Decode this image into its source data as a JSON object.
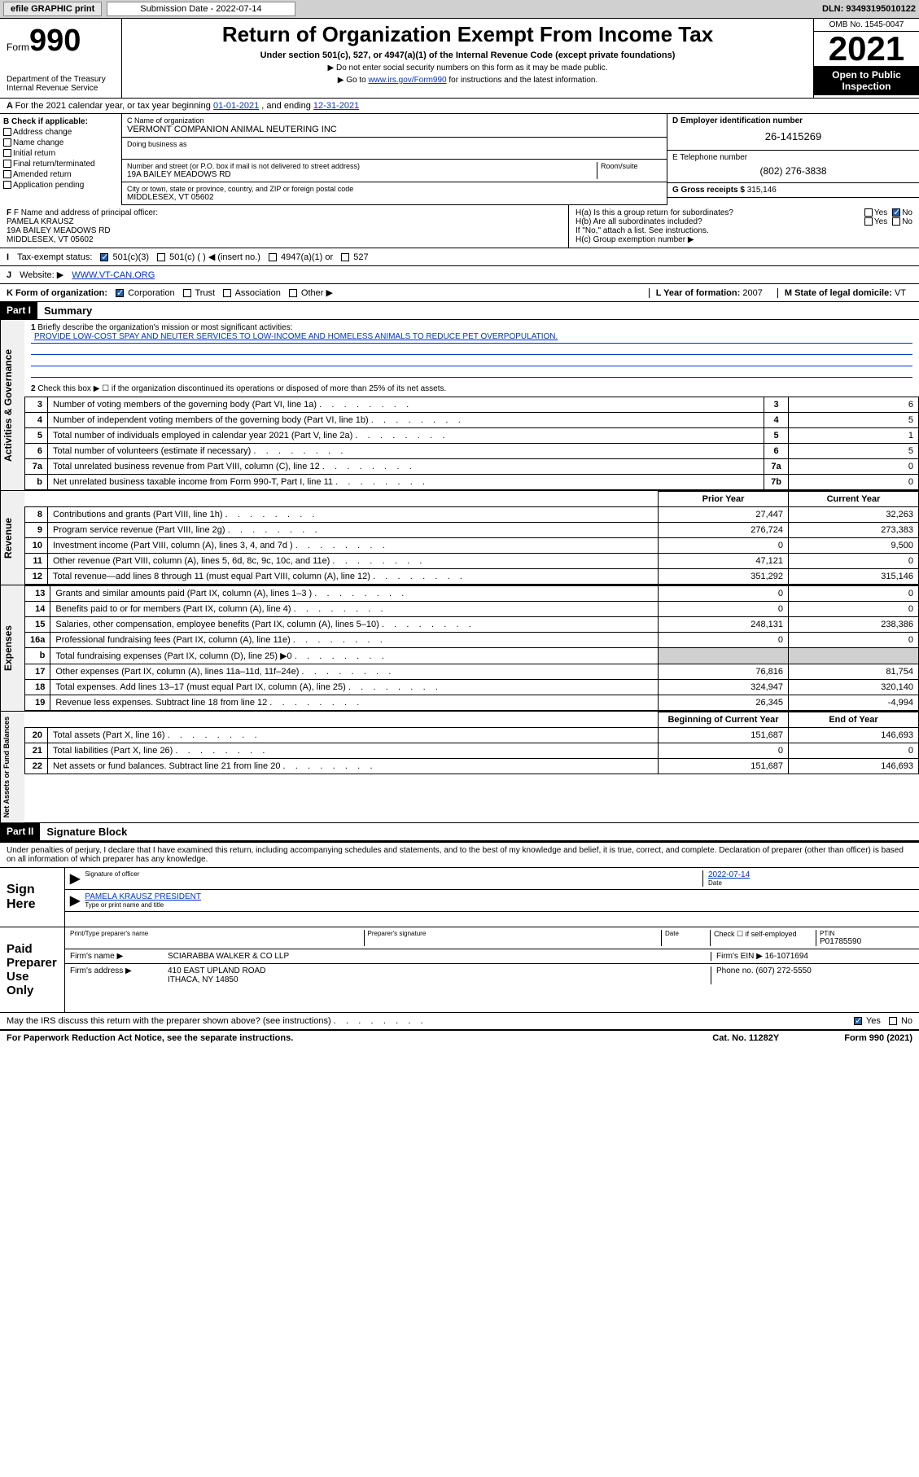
{
  "topbar": {
    "efile": "efile GRAPHIC print",
    "sub_date_lbl": "Submission Date - 2022-07-14",
    "dln": "DLN: 93493195010122"
  },
  "header": {
    "form_word": "Form",
    "form_num": "990",
    "title": "Return of Organization Exempt From Income Tax",
    "sub1": "Under section 501(c), 527, or 4947(a)(1) of the Internal Revenue Code (except private foundations)",
    "sub2": "▶ Do not enter social security numbers on this form as it may be made public.",
    "sub3_pre": "▶ Go to ",
    "sub3_link": "www.irs.gov/Form990",
    "sub3_post": " for instructions and the latest information.",
    "dept": "Department of the Treasury",
    "irs": "Internal Revenue Service",
    "omb": "OMB No. 1545-0047",
    "year": "2021",
    "open_pub1": "Open to Public",
    "open_pub2": "Inspection"
  },
  "line_a": {
    "text_pre": "For the 2021 calendar year, or tax year beginning ",
    "d1": "01-01-2021",
    "mid": " , and ending ",
    "d2": "12-31-2021"
  },
  "box_b": {
    "title": "B Check if applicable:",
    "opts": [
      "Address change",
      "Name change",
      "Initial return",
      "Final return/terminated",
      "Amended return",
      "Application pending"
    ]
  },
  "box_c": {
    "name_lbl": "C Name of organization",
    "name": "VERMONT COMPANION ANIMAL NEUTERING INC",
    "dba_lbl": "Doing business as",
    "addr_lbl": "Number and street (or P.O. box if mail is not delivered to street address)",
    "room_lbl": "Room/suite",
    "addr": "19A BAILEY MEADOWS RD",
    "city_lbl": "City or town, state or province, country, and ZIP or foreign postal code",
    "city": "MIDDLESEX, VT  05602"
  },
  "box_d": {
    "lbl": "D Employer identification number",
    "val": "26-1415269"
  },
  "box_e": {
    "lbl": "E Telephone number",
    "val": "(802) 276-3838"
  },
  "box_g": {
    "lbl": "G Gross receipts $",
    "val": "315,146"
  },
  "box_f": {
    "lbl": "F Name and address of principal officer:",
    "name": "PAMELA KRAUSZ",
    "addr1": "19A BAILEY MEADOWS RD",
    "addr2": "MIDDLESEX, VT  05602"
  },
  "box_h": {
    "ha": "H(a)  Is this a group return for subordinates?",
    "hb": "H(b)  Are all subordinates included?",
    "hb_note": "If \"No,\" attach a list. See instructions.",
    "hc": "H(c)  Group exemption number ▶",
    "yes": "Yes",
    "no": "No"
  },
  "row_i": {
    "lbl": "Tax-exempt status:",
    "o1": "501(c)(3)",
    "o2": "501(c) (   ) ◀ (insert no.)",
    "o3": "4947(a)(1) or",
    "o4": "527"
  },
  "row_j": {
    "lbl": "Website: ▶",
    "val": "WWW.VT-CAN.ORG"
  },
  "row_k": {
    "lbl": "K Form of organization:",
    "o1": "Corporation",
    "o2": "Trust",
    "o3": "Association",
    "o4": "Other ▶",
    "l_lbl": "L Year of formation:",
    "l_val": "2007",
    "m_lbl": "M State of legal domicile:",
    "m_val": "VT"
  },
  "part1": {
    "hdr": "Part I",
    "title": "Summary"
  },
  "summary": {
    "l1_lbl": "Briefly describe the organization's mission or most significant activities:",
    "l1_val": "PROVIDE LOW-COST SPAY AND NEUTER SERVICES TO LOW-INCOME AND HOMELESS ANIMALS TO REDUCE PET OVERPOPULATION.",
    "l2": "Check this box ▶ ☐  if the organization discontinued its operations or disposed of more than 25% of its net assets.",
    "rows": [
      {
        "n": "3",
        "t": "Number of voting members of the governing body (Part VI, line 1a)",
        "b": "3",
        "v": "6"
      },
      {
        "n": "4",
        "t": "Number of independent voting members of the governing body (Part VI, line 1b)",
        "b": "4",
        "v": "5"
      },
      {
        "n": "5",
        "t": "Total number of individuals employed in calendar year 2021 (Part V, line 2a)",
        "b": "5",
        "v": "1"
      },
      {
        "n": "6",
        "t": "Total number of volunteers (estimate if necessary)",
        "b": "6",
        "v": "5"
      },
      {
        "n": "7a",
        "t": "Total unrelated business revenue from Part VIII, column (C), line 12",
        "b": "7a",
        "v": "0"
      },
      {
        "n": "b",
        "t": "Net unrelated business taxable income from Form 990-T, Part I, line 11",
        "b": "7b",
        "v": "0"
      }
    ],
    "col_hdr_prior": "Prior Year",
    "col_hdr_curr": "Current Year",
    "rev": [
      {
        "n": "8",
        "t": "Contributions and grants (Part VIII, line 1h)",
        "p": "27,447",
        "c": "32,263"
      },
      {
        "n": "9",
        "t": "Program service revenue (Part VIII, line 2g)",
        "p": "276,724",
        "c": "273,383"
      },
      {
        "n": "10",
        "t": "Investment income (Part VIII, column (A), lines 3, 4, and 7d )",
        "p": "0",
        "c": "9,500"
      },
      {
        "n": "11",
        "t": "Other revenue (Part VIII, column (A), lines 5, 6d, 8c, 9c, 10c, and 11e)",
        "p": "47,121",
        "c": "0"
      },
      {
        "n": "12",
        "t": "Total revenue—add lines 8 through 11 (must equal Part VIII, column (A), line 12)",
        "p": "351,292",
        "c": "315,146"
      }
    ],
    "exp": [
      {
        "n": "13",
        "t": "Grants and similar amounts paid (Part IX, column (A), lines 1–3 )",
        "p": "0",
        "c": "0"
      },
      {
        "n": "14",
        "t": "Benefits paid to or for members (Part IX, column (A), line 4)",
        "p": "0",
        "c": "0"
      },
      {
        "n": "15",
        "t": "Salaries, other compensation, employee benefits (Part IX, column (A), lines 5–10)",
        "p": "248,131",
        "c": "238,386"
      },
      {
        "n": "16a",
        "t": "Professional fundraising fees (Part IX, column (A), line 11e)",
        "p": "0",
        "c": "0"
      },
      {
        "n": "b",
        "t": "Total fundraising expenses (Part IX, column (D), line 25) ▶0",
        "p": "",
        "c": "",
        "shade": true
      },
      {
        "n": "17",
        "t": "Other expenses (Part IX, column (A), lines 11a–11d, 11f–24e)",
        "p": "76,816",
        "c": "81,754"
      },
      {
        "n": "18",
        "t": "Total expenses. Add lines 13–17 (must equal Part IX, column (A), line 25)",
        "p": "324,947",
        "c": "320,140"
      },
      {
        "n": "19",
        "t": "Revenue less expenses. Subtract line 18 from line 12",
        "p": "26,345",
        "c": "-4,994"
      }
    ],
    "bal_hdr_beg": "Beginning of Current Year",
    "bal_hdr_end": "End of Year",
    "bal": [
      {
        "n": "20",
        "t": "Total assets (Part X, line 16)",
        "p": "151,687",
        "c": "146,693"
      },
      {
        "n": "21",
        "t": "Total liabilities (Part X, line 26)",
        "p": "0",
        "c": "0"
      },
      {
        "n": "22",
        "t": "Net assets or fund balances. Subtract line 21 from line 20",
        "p": "151,687",
        "c": "146,693"
      }
    ]
  },
  "vtabs": {
    "ag": "Activities & Governance",
    "rev": "Revenue",
    "exp": "Expenses",
    "na": "Net Assets or Fund Balances"
  },
  "part2": {
    "hdr": "Part II",
    "title": "Signature Block"
  },
  "sig": {
    "decl": "Under penalties of perjury, I declare that I have examined this return, including accompanying schedules and statements, and to the best of my knowledge and belief, it is true, correct, and complete. Declaration of preparer (other than officer) is based on all information of which preparer has any knowledge.",
    "sign_here": "Sign Here",
    "sig_officer": "Signature of officer",
    "date_lbl": "Date",
    "date_val": "2022-07-14",
    "name_title": "PAMELA KRAUSZ  PRESIDENT",
    "name_title_lbl": "Type or print name and title",
    "paid": "Paid Preparer Use Only",
    "prep_name_lbl": "Print/Type preparer's name",
    "prep_sig_lbl": "Preparer's signature",
    "check_if": "Check ☐ if self-employed",
    "ptin_lbl": "PTIN",
    "ptin": "P01785590",
    "firm_name_lbl": "Firm's name    ▶",
    "firm_name": "SCIARABBA WALKER & CO LLP",
    "firm_ein_lbl": "Firm's EIN ▶",
    "firm_ein": "16-1071694",
    "firm_addr_lbl": "Firm's address ▶",
    "firm_addr1": "410 EAST UPLAND ROAD",
    "firm_addr2": "ITHACA, NY  14850",
    "phone_lbl": "Phone no.",
    "phone": "(607) 272-5550",
    "may_irs": "May the IRS discuss this return with the preparer shown above? (see instructions)"
  },
  "footer": {
    "left": "For Paperwork Reduction Act Notice, see the separate instructions.",
    "mid": "Cat. No. 11282Y",
    "right": "Form 990 (2021)"
  }
}
